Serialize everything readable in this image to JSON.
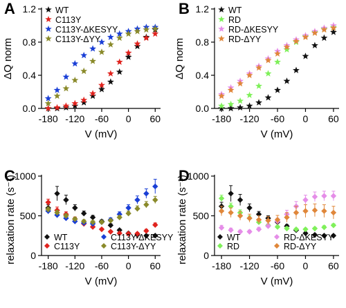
{
  "chart_data": [
    {
      "panel_label": "A",
      "type": "scatter",
      "xlabel": "V (mV)",
      "ylabel": "ΔQ norm",
      "xlim": [
        -195,
        72
      ],
      "ylim": [
        0,
        1.2
      ],
      "xticks": [
        -180,
        -120,
        -60,
        0,
        60
      ],
      "yticks": [
        0.0,
        0.4,
        0.8,
        1.2
      ],
      "ytick_labels": [
        "0.0",
        "0.4",
        "0.8",
        "1.2"
      ],
      "legend_position": "top-left",
      "series": [
        {
          "name": "WT",
          "color": "#111111",
          "marker": "star",
          "x": [
            -180,
            -160,
            -140,
            -120,
            -100,
            -80,
            -60,
            -40,
            -20,
            0,
            20,
            40,
            60
          ],
          "y": [
            0.0,
            0.0,
            0.01,
            0.03,
            0.07,
            0.15,
            0.23,
            0.32,
            0.44,
            0.62,
            0.75,
            0.86,
            0.95
          ]
        },
        {
          "name": "C113Y",
          "color": "#e0231e",
          "marker": "star",
          "x": [
            -180,
            -160,
            -140,
            -120,
            -100,
            -80,
            -60,
            -40,
            -20,
            0,
            20,
            40,
            60
          ],
          "y": [
            0.0,
            0.01,
            0.03,
            0.06,
            0.1,
            0.18,
            0.28,
            0.42,
            0.56,
            0.67,
            0.78,
            0.85,
            0.9
          ]
        },
        {
          "name": "C113Y-ΔKESYY",
          "color": "#1a3fd6",
          "marker": "star",
          "x": [
            -180,
            -160,
            -140,
            -120,
            -100,
            -80,
            -60,
            -40,
            -20,
            0,
            20,
            40,
            60
          ],
          "y": [
            0.12,
            0.22,
            0.38,
            0.54,
            0.64,
            0.72,
            0.8,
            0.86,
            0.9,
            0.93,
            0.96,
            0.98,
            0.98
          ]
        },
        {
          "name": "C113Y-ΔYY",
          "color": "#8a8a2a",
          "marker": "star",
          "x": [
            -180,
            -160,
            -140,
            -120,
            -100,
            -80,
            -60,
            -40,
            -20,
            0,
            20,
            40,
            60
          ],
          "y": [
            0.06,
            0.15,
            0.24,
            0.34,
            0.45,
            0.57,
            0.68,
            0.77,
            0.85,
            0.9,
            0.93,
            0.95,
            0.96
          ]
        }
      ]
    },
    {
      "panel_label": "B",
      "type": "scatter",
      "xlabel": "V (mV)",
      "ylabel": "ΔQ norm",
      "xlim": [
        -195,
        72
      ],
      "ylim": [
        0,
        1.2
      ],
      "xticks": [
        -180,
        -120,
        -60,
        0,
        60
      ],
      "yticks": [
        0.0,
        0.4,
        0.8,
        1.2
      ],
      "ytick_labels": [
        "0.0",
        "0.4",
        "0.8",
        "1.2"
      ],
      "legend_position": "top-left",
      "series": [
        {
          "name": "WT",
          "color": "#111111",
          "marker": "star",
          "x": [
            -180,
            -160,
            -140,
            -120,
            -100,
            -80,
            -60,
            -40,
            -20,
            0,
            20,
            40,
            60
          ],
          "y": [
            0.0,
            0.0,
            0.01,
            0.03,
            0.07,
            0.13,
            0.22,
            0.33,
            0.46,
            0.63,
            0.76,
            0.85,
            0.92
          ]
        },
        {
          "name": "RD",
          "color": "#7ff05a",
          "marker": "star",
          "x": [
            -180,
            -160,
            -140,
            -120,
            -100,
            -80,
            -60,
            -40,
            -20,
            0,
            20,
            40,
            60
          ],
          "y": [
            0.03,
            0.05,
            0.09,
            0.16,
            0.27,
            0.42,
            0.56,
            0.71,
            0.8,
            0.87,
            0.92,
            0.96,
            0.98
          ]
        },
        {
          "name": "RD-ΔKESYY",
          "color": "#e58de8",
          "marker": "star",
          "x": [
            -180,
            -160,
            -140,
            -120,
            -100,
            -80,
            -60,
            -40,
            -20,
            0,
            20,
            40,
            60
          ],
          "y": [
            0.17,
            0.25,
            0.33,
            0.42,
            0.51,
            0.6,
            0.69,
            0.76,
            0.83,
            0.88,
            0.93,
            0.97,
            1.0
          ]
        },
        {
          "name": "RD-ΔYY",
          "color": "#e0873a",
          "marker": "star",
          "x": [
            -180,
            -160,
            -140,
            -120,
            -100,
            -80,
            -60,
            -40,
            -20,
            0,
            20,
            40,
            60
          ],
          "y": [
            0.15,
            0.22,
            0.3,
            0.4,
            0.49,
            0.58,
            0.66,
            0.74,
            0.81,
            0.86,
            0.91,
            0.95,
            0.97
          ]
        }
      ]
    },
    {
      "panel_label": "C",
      "type": "scatter",
      "xlabel": "V (mV)",
      "ylabel": "relaxation rate (s⁻¹)",
      "xlim": [
        -195,
        72
      ],
      "ylim": [
        0,
        1000
      ],
      "xticks": [
        -180,
        -120,
        -60,
        0,
        60
      ],
      "yticks": [
        0,
        500,
        1000
      ],
      "ytick_labels": [
        "0",
        "500",
        "1000"
      ],
      "legend_position": "bottom",
      "series": [
        {
          "name": "WT",
          "color": "#111111",
          "marker": "diamond",
          "x": [
            -180,
            -160,
            -140,
            -120,
            -100,
            -80,
            -60,
            -40,
            -20,
            0,
            20,
            40,
            60
          ],
          "y": [
            600,
            780,
            700,
            600,
            530,
            480,
            430,
            380,
            320,
            280,
            260,
            250,
            250
          ],
          "err": [
            40,
            90,
            60,
            40,
            30,
            25,
            20,
            20,
            15,
            15,
            15,
            15,
            15
          ]
        },
        {
          "name": "C113Y",
          "color": "#e0231e",
          "marker": "diamond",
          "x": [
            -180,
            -160,
            -140,
            -120,
            -100,
            -80,
            -60,
            -40,
            -20,
            0,
            20,
            40,
            60
          ],
          "y": [
            670,
            570,
            520,
            460,
            400,
            360,
            330,
            300,
            280,
            275,
            275,
            310,
            385
          ],
          "err": [
            40,
            40,
            30,
            25,
            20,
            20,
            15,
            15,
            15,
            15,
            15,
            20,
            25
          ]
        },
        {
          "name": "C113Y-ΔKESYY",
          "color": "#1a3fd6",
          "marker": "diamond",
          "x": [
            -180,
            -160,
            -140,
            -120,
            -100,
            -80,
            -60,
            -40,
            -20,
            0,
            20,
            40,
            60
          ],
          "y": [
            560,
            510,
            470,
            430,
            410,
            400,
            420,
            450,
            520,
            600,
            700,
            780,
            870
          ],
          "err": [
            35,
            35,
            30,
            25,
            20,
            20,
            20,
            25,
            30,
            40,
            50,
            60,
            90
          ]
        },
        {
          "name": "C113Y-ΔYY",
          "color": "#8a8a2a",
          "marker": "diamond",
          "x": [
            -180,
            -160,
            -140,
            -120,
            -100,
            -80,
            -60,
            -40,
            -20,
            0,
            20,
            40,
            60
          ],
          "y": [
            580,
            540,
            500,
            460,
            430,
            420,
            420,
            440,
            480,
            530,
            590,
            640,
            700
          ],
          "err": [
            30,
            30,
            25,
            20,
            20,
            20,
            20,
            20,
            25,
            30,
            35,
            40,
            45
          ]
        }
      ]
    },
    {
      "panel_label": "D",
      "type": "scatter",
      "xlabel": "V (mV)",
      "ylabel": "relaxation rate (s⁻¹)",
      "xlim": [
        -195,
        72
      ],
      "ylim": [
        0,
        1000
      ],
      "xticks": [
        -180,
        -120,
        -60,
        0,
        60
      ],
      "yticks": [
        0,
        500,
        1000
      ],
      "ytick_labels": [
        "0",
        "500",
        "1000"
      ],
      "legend_position": "bottom",
      "series": [
        {
          "name": "WT",
          "color": "#111111",
          "marker": "diamond",
          "x": [
            -180,
            -160,
            -140,
            -120,
            -100,
            -80,
            -60,
            -40,
            -20,
            0,
            20,
            40,
            60
          ],
          "y": [
            620,
            780,
            700,
            600,
            520,
            470,
            420,
            370,
            320,
            280,
            260,
            250,
            250
          ],
          "err": [
            50,
            100,
            70,
            50,
            35,
            30,
            25,
            20,
            15,
            15,
            15,
            15,
            15
          ]
        },
        {
          "name": "RD",
          "color": "#7ff05a",
          "marker": "diamond",
          "x": [
            -180,
            -160,
            -140,
            -120,
            -100,
            -80,
            -60,
            -40,
            -20,
            0,
            20,
            40,
            60
          ],
          "y": [
            720,
            620,
            540,
            470,
            420,
            380,
            360,
            340,
            330,
            330,
            340,
            355,
            380
          ],
          "err": [
            40,
            40,
            35,
            30,
            25,
            20,
            20,
            20,
            15,
            15,
            15,
            20,
            20
          ]
        },
        {
          "name": "RD-ΔKESYY",
          "color": "#e58de8",
          "marker": "diamond",
          "x": [
            -180,
            -160,
            -140,
            -120,
            -100,
            -80,
            -60,
            -40,
            -20,
            0,
            20,
            40,
            60
          ],
          "y": [
            350,
            320,
            300,
            300,
            330,
            370,
            430,
            520,
            620,
            700,
            740,
            750,
            750
          ],
          "err": [
            30,
            25,
            20,
            20,
            25,
            30,
            40,
            50,
            60,
            60,
            60,
            60,
            60
          ]
        },
        {
          "name": "RD-ΔYY",
          "color": "#e0873a",
          "marker": "diamond",
          "x": [
            -180,
            -160,
            -140,
            -120,
            -100,
            -80,
            -60,
            -40,
            -20,
            0,
            20,
            40,
            60
          ],
          "y": [
            560,
            540,
            500,
            470,
            450,
            440,
            450,
            480,
            540,
            560,
            570,
            560,
            540
          ],
          "err": [
            60,
            60,
            55,
            50,
            50,
            50,
            55,
            60,
            80,
            80,
            80,
            80,
            80
          ]
        }
      ]
    }
  ]
}
